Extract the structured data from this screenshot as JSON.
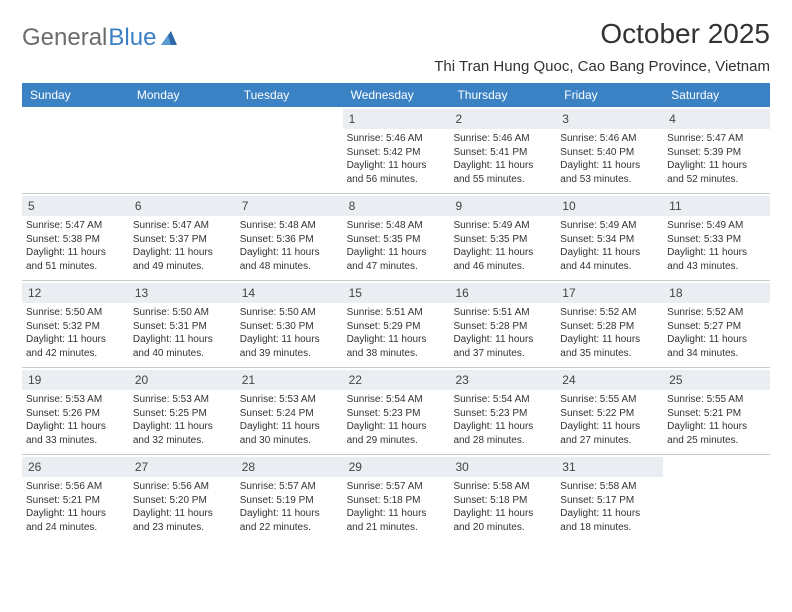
{
  "brand": {
    "name_gray": "General",
    "name_blue": "Blue"
  },
  "title": "October 2025",
  "location": "Thi Tran Hung Quoc, Cao Bang Province, Vietnam",
  "colors": {
    "header_bg": "#3b82c4",
    "header_text": "#ffffff",
    "daynum_bg": "#eaeef2",
    "rule": "#c9c9c9",
    "text": "#333333",
    "logo_gray": "#6b6b6b",
    "logo_blue": "#3b7fc4"
  },
  "weekdays": [
    "Sunday",
    "Monday",
    "Tuesday",
    "Wednesday",
    "Thursday",
    "Friday",
    "Saturday"
  ],
  "weeks": [
    [
      null,
      null,
      null,
      {
        "n": "1",
        "sunrise": "5:46 AM",
        "sunset": "5:42 PM",
        "dl": "11 hours and 56 minutes."
      },
      {
        "n": "2",
        "sunrise": "5:46 AM",
        "sunset": "5:41 PM",
        "dl": "11 hours and 55 minutes."
      },
      {
        "n": "3",
        "sunrise": "5:46 AM",
        "sunset": "5:40 PM",
        "dl": "11 hours and 53 minutes."
      },
      {
        "n": "4",
        "sunrise": "5:47 AM",
        "sunset": "5:39 PM",
        "dl": "11 hours and 52 minutes."
      }
    ],
    [
      {
        "n": "5",
        "sunrise": "5:47 AM",
        "sunset": "5:38 PM",
        "dl": "11 hours and 51 minutes."
      },
      {
        "n": "6",
        "sunrise": "5:47 AM",
        "sunset": "5:37 PM",
        "dl": "11 hours and 49 minutes."
      },
      {
        "n": "7",
        "sunrise": "5:48 AM",
        "sunset": "5:36 PM",
        "dl": "11 hours and 48 minutes."
      },
      {
        "n": "8",
        "sunrise": "5:48 AM",
        "sunset": "5:35 PM",
        "dl": "11 hours and 47 minutes."
      },
      {
        "n": "9",
        "sunrise": "5:49 AM",
        "sunset": "5:35 PM",
        "dl": "11 hours and 46 minutes."
      },
      {
        "n": "10",
        "sunrise": "5:49 AM",
        "sunset": "5:34 PM",
        "dl": "11 hours and 44 minutes."
      },
      {
        "n": "11",
        "sunrise": "5:49 AM",
        "sunset": "5:33 PM",
        "dl": "11 hours and 43 minutes."
      }
    ],
    [
      {
        "n": "12",
        "sunrise": "5:50 AM",
        "sunset": "5:32 PM",
        "dl": "11 hours and 42 minutes."
      },
      {
        "n": "13",
        "sunrise": "5:50 AM",
        "sunset": "5:31 PM",
        "dl": "11 hours and 40 minutes."
      },
      {
        "n": "14",
        "sunrise": "5:50 AM",
        "sunset": "5:30 PM",
        "dl": "11 hours and 39 minutes."
      },
      {
        "n": "15",
        "sunrise": "5:51 AM",
        "sunset": "5:29 PM",
        "dl": "11 hours and 38 minutes."
      },
      {
        "n": "16",
        "sunrise": "5:51 AM",
        "sunset": "5:28 PM",
        "dl": "11 hours and 37 minutes."
      },
      {
        "n": "17",
        "sunrise": "5:52 AM",
        "sunset": "5:28 PM",
        "dl": "11 hours and 35 minutes."
      },
      {
        "n": "18",
        "sunrise": "5:52 AM",
        "sunset": "5:27 PM",
        "dl": "11 hours and 34 minutes."
      }
    ],
    [
      {
        "n": "19",
        "sunrise": "5:53 AM",
        "sunset": "5:26 PM",
        "dl": "11 hours and 33 minutes."
      },
      {
        "n": "20",
        "sunrise": "5:53 AM",
        "sunset": "5:25 PM",
        "dl": "11 hours and 32 minutes."
      },
      {
        "n": "21",
        "sunrise": "5:53 AM",
        "sunset": "5:24 PM",
        "dl": "11 hours and 30 minutes."
      },
      {
        "n": "22",
        "sunrise": "5:54 AM",
        "sunset": "5:23 PM",
        "dl": "11 hours and 29 minutes."
      },
      {
        "n": "23",
        "sunrise": "5:54 AM",
        "sunset": "5:23 PM",
        "dl": "11 hours and 28 minutes."
      },
      {
        "n": "24",
        "sunrise": "5:55 AM",
        "sunset": "5:22 PM",
        "dl": "11 hours and 27 minutes."
      },
      {
        "n": "25",
        "sunrise": "5:55 AM",
        "sunset": "5:21 PM",
        "dl": "11 hours and 25 minutes."
      }
    ],
    [
      {
        "n": "26",
        "sunrise": "5:56 AM",
        "sunset": "5:21 PM",
        "dl": "11 hours and 24 minutes."
      },
      {
        "n": "27",
        "sunrise": "5:56 AM",
        "sunset": "5:20 PM",
        "dl": "11 hours and 23 minutes."
      },
      {
        "n": "28",
        "sunrise": "5:57 AM",
        "sunset": "5:19 PM",
        "dl": "11 hours and 22 minutes."
      },
      {
        "n": "29",
        "sunrise": "5:57 AM",
        "sunset": "5:18 PM",
        "dl": "11 hours and 21 minutes."
      },
      {
        "n": "30",
        "sunrise": "5:58 AM",
        "sunset": "5:18 PM",
        "dl": "11 hours and 20 minutes."
      },
      {
        "n": "31",
        "sunrise": "5:58 AM",
        "sunset": "5:17 PM",
        "dl": "11 hours and 18 minutes."
      },
      null
    ]
  ],
  "labels": {
    "sunrise": "Sunrise:",
    "sunset": "Sunset:",
    "daylight": "Daylight:"
  }
}
